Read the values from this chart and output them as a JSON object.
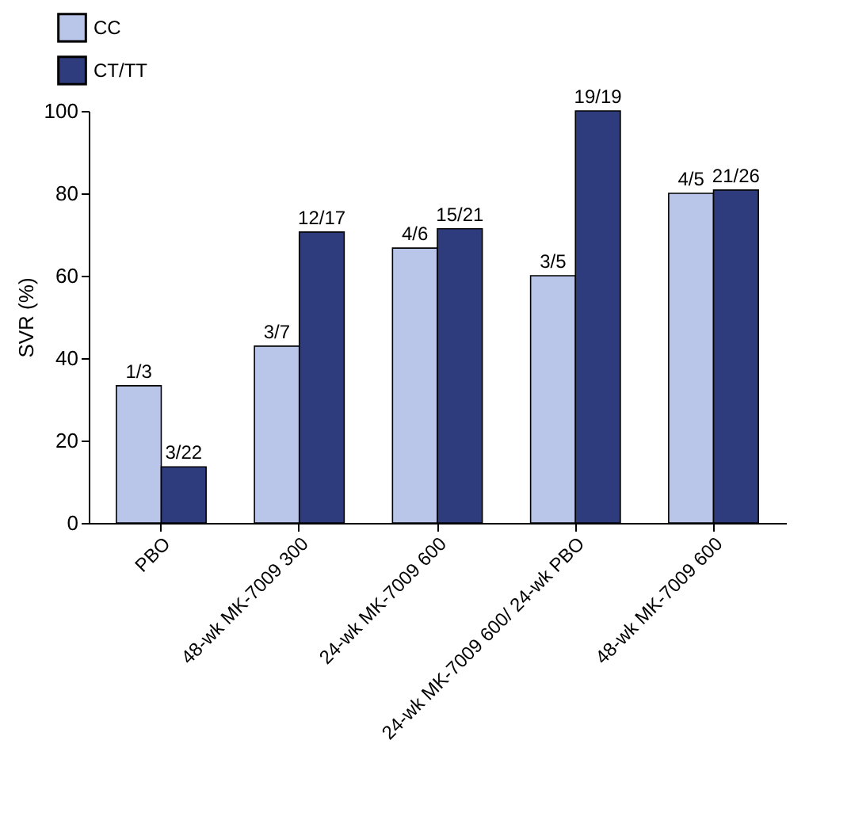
{
  "chart_data": {
    "type": "bar",
    "ylabel": "SVR (%)",
    "categories": [
      "PBO",
      "48-wk MK-7009 300",
      "24-wk MK-7009 600",
      "24-wk MK-7009 600/ 24-wk PBO",
      "48-wk MK-7009 600"
    ],
    "series": [
      {
        "name": "CC",
        "color": "#b9c6ea",
        "values": [
          33.3,
          42.9,
          66.7,
          60,
          80
        ]
      },
      {
        "name": "CT/TT",
        "color": "#2e3c7e",
        "values": [
          13.6,
          70.6,
          71.4,
          100,
          80.8
        ]
      }
    ],
    "annotations": [
      {
        "text": "1/3",
        "x": "PBO",
        "y": 33.3
      },
      {
        "text": "3/7",
        "x": "48-wk MK-7009 300",
        "y": 42.9
      },
      {
        "text": "4/6",
        "x": "24-wk MK-7009 600",
        "y": 66.7
      },
      {
        "text": "3/5",
        "x": "24-wk MK-7009 600/ 24-wk PBO",
        "y": 60
      },
      {
        "text": "4/5",
        "x": "48-wk MK-7009 600",
        "y": 80
      },
      {
        "text": "3/22",
        "x": "PBO",
        "y": 13.6
      },
      {
        "text": "12/17",
        "x": "48-wk MK-7009 300",
        "y": 70.6
      },
      {
        "text": "15/21",
        "x": "24-wk MK-7009 600",
        "y": 71.4
      },
      {
        "text": "19/19",
        "x": "24-wk MK-7009 600/ 24-wk PBO",
        "y": 100
      },
      {
        "text": "21/26",
        "x": "48-wk MK-7009 600",
        "y": 80.8
      }
    ],
    "ylim": [
      0,
      100
    ],
    "yticks": [
      0,
      20,
      40,
      60,
      80,
      100
    ],
    "grid": false,
    "legend": "top left"
  }
}
